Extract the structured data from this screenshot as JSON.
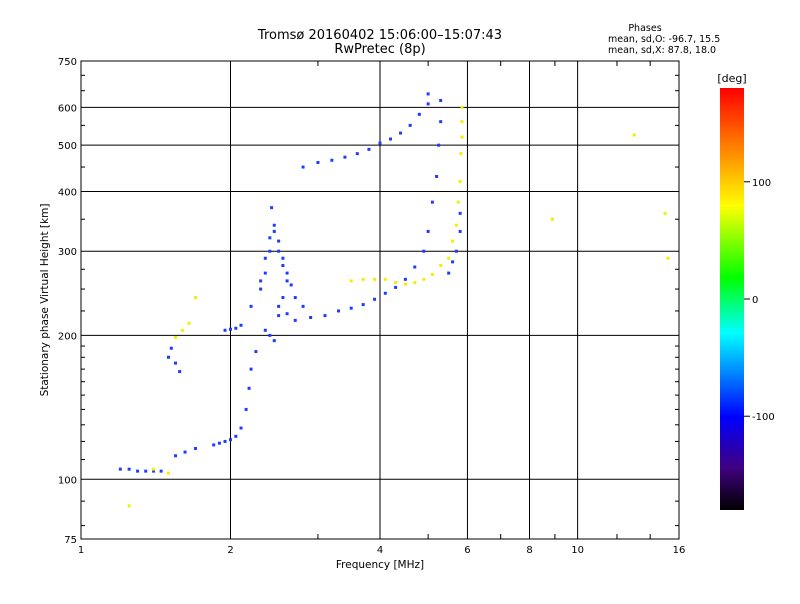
{
  "header": {
    "title_line1": "Tromsø 20160402 15:06:00–15:07:43",
    "title_line2": "RwPretec (8p)",
    "stats_title": "Phases",
    "stats_o": "mean, sd,O: -96.7, 15.5",
    "stats_x": "mean, sd,X:  87.8, 18.0"
  },
  "colorbar": {
    "label": "[deg]",
    "tick_labels": [
      "100",
      "0",
      "-100"
    ],
    "colors": [
      "#ff0000",
      "#ff8000",
      "#ffff00",
      "#00ff00",
      "#00ffff",
      "#0000ff",
      "#400080",
      "#000000"
    ]
  },
  "chart_data": {
    "type": "scatter",
    "xlabel": "Frequency [MHz]",
    "ylabel": "Stationary phase Virtual Height [km]",
    "x_scale": "log",
    "y_scale": "log",
    "xlim": [
      1,
      16
    ],
    "ylim": [
      75,
      750
    ],
    "x_ticks": [
      1,
      2,
      4,
      6,
      8,
      10,
      16
    ],
    "x_tick_labels": [
      "1",
      "2",
      "4",
      "6",
      "8",
      "10",
      "16"
    ],
    "y_ticks": [
      75,
      100,
      200,
      300,
      400,
      500,
      600,
      750
    ],
    "y_tick_labels": [
      "75",
      "100",
      "200",
      "300",
      "400",
      "500",
      "600",
      "750"
    ],
    "grid": true,
    "series": [
      {
        "name": "O",
        "color": "#1e3cff",
        "points": [
          [
            1.2,
            105
          ],
          [
            1.25,
            105
          ],
          [
            1.3,
            104
          ],
          [
            1.35,
            104
          ],
          [
            1.4,
            104
          ],
          [
            1.45,
            104
          ],
          [
            1.55,
            112
          ],
          [
            1.62,
            114
          ],
          [
            1.7,
            116
          ],
          [
            1.5,
            180
          ],
          [
            1.52,
            188
          ],
          [
            1.55,
            175
          ],
          [
            1.58,
            168
          ],
          [
            1.85,
            118
          ],
          [
            1.9,
            119
          ],
          [
            1.95,
            120
          ],
          [
            2.0,
            121
          ],
          [
            2.05,
            123
          ],
          [
            2.1,
            128
          ],
          [
            2.15,
            140
          ],
          [
            2.18,
            155
          ],
          [
            2.2,
            170
          ],
          [
            2.25,
            185
          ],
          [
            1.95,
            205
          ],
          [
            2.0,
            206
          ],
          [
            2.05,
            207
          ],
          [
            2.1,
            210
          ],
          [
            2.2,
            230
          ],
          [
            2.3,
            260
          ],
          [
            2.35,
            290
          ],
          [
            2.4,
            320
          ],
          [
            2.42,
            370
          ],
          [
            2.45,
            340
          ],
          [
            2.5,
            300
          ],
          [
            2.55,
            280
          ],
          [
            2.6,
            260
          ],
          [
            2.3,
            250
          ],
          [
            2.35,
            270
          ],
          [
            2.4,
            300
          ],
          [
            2.45,
            330
          ],
          [
            2.5,
            315
          ],
          [
            2.55,
            290
          ],
          [
            2.6,
            270
          ],
          [
            2.65,
            255
          ],
          [
            2.35,
            205
          ],
          [
            2.4,
            200
          ],
          [
            2.45,
            195
          ],
          [
            2.5,
            230
          ],
          [
            2.55,
            240
          ],
          [
            2.6,
            222
          ],
          [
            2.7,
            240
          ],
          [
            2.8,
            230
          ],
          [
            2.5,
            220
          ],
          [
            2.7,
            215
          ],
          [
            2.9,
            218
          ],
          [
            3.1,
            220
          ],
          [
            3.3,
            225
          ],
          [
            3.5,
            228
          ],
          [
            3.7,
            232
          ],
          [
            3.9,
            238
          ],
          [
            4.1,
            245
          ],
          [
            4.3,
            252
          ],
          [
            4.5,
            262
          ],
          [
            4.7,
            278
          ],
          [
            4.9,
            300
          ],
          [
            5.0,
            330
          ],
          [
            5.1,
            380
          ],
          [
            5.2,
            430
          ],
          [
            5.25,
            500
          ],
          [
            5.3,
            560
          ],
          [
            5.3,
            620
          ],
          [
            2.8,
            450
          ],
          [
            3.0,
            460
          ],
          [
            3.2,
            465
          ],
          [
            3.4,
            472
          ],
          [
            3.6,
            480
          ],
          [
            3.8,
            490
          ],
          [
            4.0,
            505
          ],
          [
            4.2,
            515
          ],
          [
            4.4,
            530
          ],
          [
            4.6,
            550
          ],
          [
            4.8,
            580
          ],
          [
            5.0,
            610
          ],
          [
            5.0,
            640
          ],
          [
            5.5,
            270
          ],
          [
            5.6,
            285
          ],
          [
            5.7,
            300
          ],
          [
            5.8,
            330
          ],
          [
            5.8,
            360
          ]
        ]
      },
      {
        "name": "X",
        "color": "#f2f000",
        "points": [
          [
            1.25,
            88
          ],
          [
            1.4,
            105
          ],
          [
            1.5,
            103
          ],
          [
            1.55,
            198
          ],
          [
            1.6,
            205
          ],
          [
            1.65,
            212
          ],
          [
            1.7,
            240
          ],
          [
            3.5,
            260
          ],
          [
            3.7,
            262
          ],
          [
            3.9,
            262
          ],
          [
            4.1,
            262
          ],
          [
            4.3,
            258
          ],
          [
            4.5,
            256
          ],
          [
            4.7,
            258
          ],
          [
            4.9,
            262
          ],
          [
            5.1,
            268
          ],
          [
            5.3,
            280
          ],
          [
            5.5,
            290
          ],
          [
            5.6,
            315
          ],
          [
            5.7,
            340
          ],
          [
            5.75,
            380
          ],
          [
            5.8,
            420
          ],
          [
            5.82,
            480
          ],
          [
            5.85,
            520
          ],
          [
            5.85,
            560
          ],
          [
            5.85,
            600
          ],
          [
            13.0,
            525
          ],
          [
            15.2,
            290
          ],
          [
            15.0,
            360
          ],
          [
            8.9,
            350
          ]
        ]
      }
    ]
  }
}
